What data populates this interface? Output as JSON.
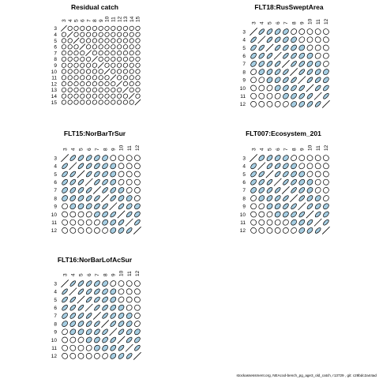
{
  "footer": "stockassessment.org, NEAcod-bench_pg_age3_old_catch, r13729 , git: c28bdc2a44ad",
  "colors": {
    "positive": "#a6cee3",
    "negative": "#ffffff",
    "stroke": "#000000"
  },
  "chart_data": [
    {
      "type": "correlation-matrix",
      "title": "Residual catch",
      "labels": [
        "3",
        "4",
        "5",
        "6",
        "7",
        "8",
        "9",
        "10",
        "11",
        "12",
        "13",
        "14",
        "15"
      ],
      "values": [
        [
          1,
          -0.05,
          -0.05,
          -0.05,
          -0.05,
          -0.05,
          -0.05,
          -0.05,
          -0.05,
          -0.05,
          -0.05,
          -0.05,
          -0.05
        ],
        [
          -0.05,
          1,
          -0.05,
          -0.05,
          -0.05,
          -0.05,
          -0.05,
          -0.05,
          -0.05,
          -0.05,
          -0.05,
          -0.05,
          -0.05
        ],
        [
          -0.05,
          -0.05,
          1,
          -0.05,
          -0.05,
          -0.05,
          -0.05,
          -0.05,
          -0.05,
          -0.05,
          -0.05,
          -0.05,
          -0.05
        ],
        [
          -0.05,
          -0.05,
          -0.05,
          1,
          -0.05,
          -0.05,
          -0.05,
          -0.05,
          -0.05,
          -0.05,
          -0.05,
          -0.05,
          -0.05
        ],
        [
          -0.05,
          -0.05,
          -0.05,
          -0.05,
          1,
          -0.05,
          -0.05,
          -0.05,
          -0.05,
          -0.05,
          -0.05,
          -0.05,
          -0.05
        ],
        [
          -0.05,
          -0.05,
          -0.05,
          -0.05,
          -0.05,
          1,
          -0.05,
          -0.05,
          -0.05,
          -0.05,
          -0.05,
          -0.05,
          -0.05
        ],
        [
          -0.05,
          -0.05,
          -0.05,
          -0.05,
          -0.05,
          -0.05,
          1,
          -0.05,
          -0.05,
          -0.05,
          -0.05,
          -0.05,
          -0.05
        ],
        [
          -0.05,
          -0.05,
          -0.05,
          -0.05,
          -0.05,
          -0.05,
          -0.05,
          1,
          -0.05,
          -0.05,
          -0.05,
          -0.05,
          -0.05
        ],
        [
          -0.05,
          -0.05,
          -0.05,
          -0.05,
          -0.05,
          -0.05,
          -0.05,
          -0.05,
          1,
          -0.05,
          -0.05,
          -0.05,
          -0.05
        ],
        [
          -0.05,
          -0.05,
          -0.05,
          -0.05,
          -0.05,
          -0.05,
          -0.05,
          -0.05,
          -0.05,
          1,
          -0.05,
          -0.05,
          -0.05
        ],
        [
          -0.05,
          -0.05,
          -0.05,
          -0.05,
          -0.05,
          -0.05,
          -0.05,
          -0.05,
          -0.05,
          -0.05,
          1,
          -0.05,
          -0.05
        ],
        [
          -0.05,
          -0.05,
          -0.05,
          -0.05,
          -0.05,
          -0.05,
          -0.05,
          -0.05,
          -0.05,
          -0.05,
          -0.05,
          1,
          -0.05
        ],
        [
          -0.05,
          -0.05,
          -0.05,
          -0.05,
          -0.05,
          -0.05,
          -0.05,
          -0.05,
          -0.05,
          -0.05,
          -0.05,
          -0.05,
          1
        ]
      ]
    },
    {
      "type": "correlation-matrix",
      "title": "FLT18:RusSweptArea",
      "labels": [
        "3",
        "4",
        "5",
        "6",
        "7",
        "8",
        "9",
        "10",
        "11",
        "12"
      ],
      "values": [
        [
          1,
          0.8,
          0.7,
          0.6,
          0.5,
          0.3,
          0.2,
          0.05,
          0.05,
          0.05
        ],
        [
          0.8,
          1,
          0.8,
          0.7,
          0.6,
          0.45,
          0.3,
          0.2,
          0.05,
          0.05
        ],
        [
          0.7,
          0.8,
          1,
          0.8,
          0.7,
          0.55,
          0.4,
          0.3,
          0.2,
          0.05
        ],
        [
          0.6,
          0.7,
          0.8,
          1,
          0.8,
          0.7,
          0.55,
          0.4,
          0.3,
          0.2
        ],
        [
          0.5,
          0.6,
          0.7,
          0.8,
          1,
          0.8,
          0.7,
          0.55,
          0.4,
          0.3
        ],
        [
          0.3,
          0.45,
          0.55,
          0.7,
          0.8,
          1,
          0.8,
          0.7,
          0.55,
          0.4
        ],
        [
          0.2,
          0.3,
          0.4,
          0.55,
          0.7,
          0.8,
          1,
          0.8,
          0.7,
          0.55
        ],
        [
          0.05,
          0.2,
          0.3,
          0.4,
          0.55,
          0.7,
          0.8,
          1,
          0.8,
          0.7
        ],
        [
          0.05,
          0.05,
          0.2,
          0.3,
          0.4,
          0.55,
          0.7,
          0.8,
          1,
          0.8
        ],
        [
          0.05,
          0.05,
          0.05,
          0.2,
          0.3,
          0.4,
          0.55,
          0.7,
          0.8,
          1
        ]
      ]
    },
    {
      "type": "correlation-matrix",
      "title": "FLT15:NorBarTrSur",
      "labels": [
        "3",
        "4",
        "5",
        "6",
        "7",
        "8",
        "9",
        "10",
        "11",
        "12"
      ],
      "values": [
        [
          1,
          0.75,
          0.7,
          0.65,
          0.55,
          0.4,
          0.2,
          0.05,
          0.05,
          0.05
        ],
        [
          0.75,
          1,
          0.8,
          0.7,
          0.65,
          0.55,
          0.35,
          0.1,
          0.05,
          0.05
        ],
        [
          0.7,
          0.8,
          1,
          0.8,
          0.7,
          0.6,
          0.4,
          0.2,
          0.05,
          0.05
        ],
        [
          0.65,
          0.7,
          0.8,
          1,
          0.8,
          0.7,
          0.5,
          0.3,
          0.15,
          0.05
        ],
        [
          0.55,
          0.65,
          0.7,
          0.8,
          1,
          0.8,
          0.65,
          0.45,
          0.3,
          0.15
        ],
        [
          0.4,
          0.55,
          0.6,
          0.7,
          0.8,
          1,
          0.75,
          0.55,
          0.4,
          0.25
        ],
        [
          0.2,
          0.35,
          0.4,
          0.5,
          0.65,
          0.75,
          1,
          0.75,
          0.55,
          0.4
        ],
        [
          0.05,
          0.1,
          0.2,
          0.3,
          0.45,
          0.55,
          0.75,
          1,
          0.75,
          0.55
        ],
        [
          0.05,
          0.05,
          0.05,
          0.15,
          0.3,
          0.4,
          0.55,
          0.75,
          1,
          0.75
        ],
        [
          0.05,
          0.05,
          0.05,
          0.05,
          0.15,
          0.25,
          0.4,
          0.55,
          0.75,
          1
        ]
      ]
    },
    {
      "type": "correlation-matrix",
      "title": "FLT007:Ecosystem_201",
      "labels": [
        "3",
        "4",
        "5",
        "6",
        "7",
        "8",
        "9",
        "10",
        "11",
        "12"
      ],
      "values": [
        [
          1,
          0.6,
          0.6,
          0.55,
          0.45,
          0.3,
          0.15,
          0.05,
          0.05,
          0.05
        ],
        [
          0.6,
          1,
          0.75,
          0.7,
          0.6,
          0.45,
          0.3,
          0.15,
          0.05,
          0.05
        ],
        [
          0.6,
          0.75,
          1,
          0.8,
          0.7,
          0.55,
          0.4,
          0.25,
          0.1,
          0.05
        ],
        [
          0.55,
          0.7,
          0.8,
          1,
          0.8,
          0.7,
          0.5,
          0.35,
          0.2,
          0.1
        ],
        [
          0.45,
          0.6,
          0.7,
          0.8,
          1,
          0.8,
          0.65,
          0.45,
          0.3,
          0.2
        ],
        [
          0.3,
          0.45,
          0.55,
          0.7,
          0.8,
          1,
          0.75,
          0.6,
          0.45,
          0.3
        ],
        [
          0.15,
          0.3,
          0.4,
          0.5,
          0.65,
          0.75,
          1,
          0.75,
          0.6,
          0.45
        ],
        [
          0.05,
          0.15,
          0.25,
          0.35,
          0.45,
          0.6,
          0.75,
          1,
          0.75,
          0.6
        ],
        [
          0.05,
          0.05,
          0.1,
          0.2,
          0.3,
          0.45,
          0.6,
          0.75,
          1,
          0.75
        ],
        [
          0.05,
          0.05,
          0.05,
          0.1,
          0.2,
          0.3,
          0.45,
          0.6,
          0.75,
          1
        ]
      ]
    },
    {
      "type": "correlation-matrix",
      "title": "FLT16:NorBarLofAcSur",
      "labels": [
        "3",
        "4",
        "5",
        "6",
        "7",
        "8",
        "9",
        "10",
        "11",
        "12"
      ],
      "values": [
        [
          1,
          0.85,
          0.75,
          0.7,
          0.6,
          0.45,
          0.3,
          0.1,
          0.05,
          0.05
        ],
        [
          0.85,
          1,
          0.85,
          0.75,
          0.7,
          0.55,
          0.4,
          0.2,
          0.05,
          0.05
        ],
        [
          0.75,
          0.85,
          1,
          0.85,
          0.75,
          0.6,
          0.45,
          0.3,
          0.15,
          0.05
        ],
        [
          0.7,
          0.75,
          0.85,
          1,
          0.85,
          0.7,
          0.55,
          0.4,
          0.25,
          0.1
        ],
        [
          0.6,
          0.7,
          0.75,
          0.85,
          1,
          0.8,
          0.65,
          0.5,
          0.35,
          0.2
        ],
        [
          0.45,
          0.55,
          0.6,
          0.7,
          0.8,
          1,
          0.75,
          0.6,
          0.45,
          0.3
        ],
        [
          0.3,
          0.4,
          0.45,
          0.55,
          0.65,
          0.75,
          1,
          0.75,
          0.6,
          0.45
        ],
        [
          0.1,
          0.2,
          0.3,
          0.4,
          0.5,
          0.6,
          0.75,
          1,
          0.75,
          0.6
        ],
        [
          0.05,
          0.05,
          0.15,
          0.25,
          0.35,
          0.45,
          0.6,
          0.75,
          1,
          0.75
        ],
        [
          0.05,
          0.05,
          0.05,
          0.1,
          0.2,
          0.3,
          0.45,
          0.6,
          0.75,
          1
        ]
      ]
    }
  ]
}
